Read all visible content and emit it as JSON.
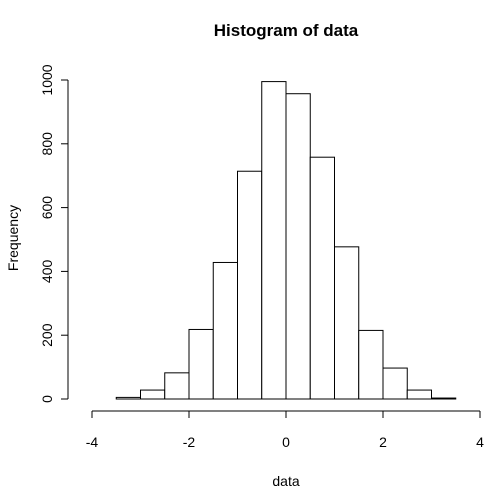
{
  "chart_data": {
    "type": "bar",
    "title": "Histogram of data",
    "xlabel": "data",
    "ylabel": "Frequency",
    "bin_edges": [
      -3.5,
      -3.0,
      -2.5,
      -2.0,
      -1.5,
      -1.0,
      -0.5,
      0.0,
      0.5,
      1.0,
      1.5,
      2.0,
      2.5,
      3.0,
      3.5
    ],
    "values": [
      5,
      28,
      82,
      218,
      428,
      714,
      995,
      957,
      758,
      477,
      215,
      97,
      28,
      3
    ],
    "xlim": [
      -4,
      4
    ],
    "ylim": [
      0,
      1000
    ],
    "x_ticks": [
      -4,
      -2,
      0,
      2,
      4
    ],
    "x_tick_labels": [
      "-4",
      "-2",
      "0",
      "2",
      "4"
    ],
    "y_ticks": [
      0,
      200,
      400,
      600,
      800,
      1000
    ],
    "y_tick_labels": [
      "0",
      "200",
      "400",
      "600",
      "800",
      "1000"
    ],
    "grid": false,
    "legend": "none",
    "bar_fill": "#ffffff",
    "bar_stroke": "#000000"
  }
}
